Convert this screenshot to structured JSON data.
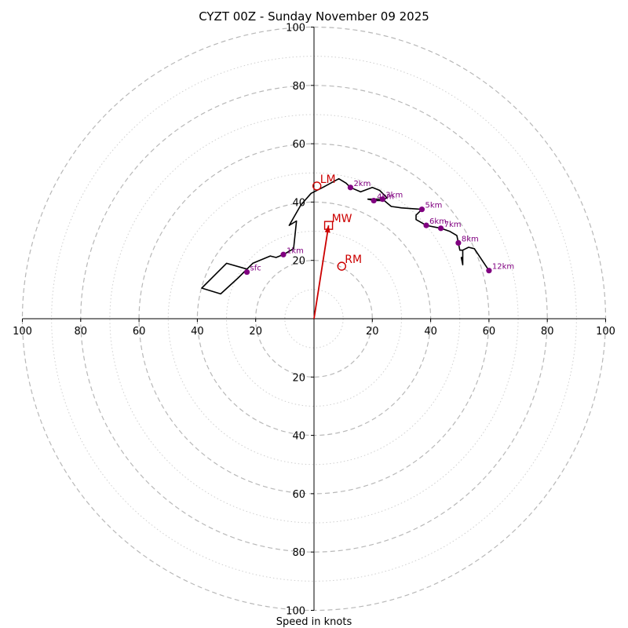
{
  "chart_data": {
    "type": "hodograph",
    "title": "CYZT 00Z - Sunday November 09 2025",
    "xlabel": "Speed in knots",
    "units": "knots",
    "xlim": [
      -100,
      100
    ],
    "ylim": [
      -100,
      100
    ],
    "rings_major": [
      20,
      40,
      60,
      80,
      100
    ],
    "rings_minor": [
      10,
      30,
      50,
      70,
      90
    ],
    "x_ticks": [
      {
        "value": -100,
        "label": "100"
      },
      {
        "value": -80,
        "label": "80"
      },
      {
        "value": -60,
        "label": "60"
      },
      {
        "value": -40,
        "label": "40"
      },
      {
        "value": -20,
        "label": "20"
      },
      {
        "value": 20,
        "label": "20"
      },
      {
        "value": 40,
        "label": "40"
      },
      {
        "value": 60,
        "label": "60"
      },
      {
        "value": 80,
        "label": "80"
      },
      {
        "value": 100,
        "label": "100"
      }
    ],
    "y_ticks": [
      {
        "value": 100,
        "label": "100"
      },
      {
        "value": 80,
        "label": "80"
      },
      {
        "value": 60,
        "label": "60"
      },
      {
        "value": 40,
        "label": "40"
      },
      {
        "value": 20,
        "label": "20"
      },
      {
        "value": -20,
        "label": "20"
      },
      {
        "value": -40,
        "label": "40"
      },
      {
        "value": -60,
        "label": "60"
      },
      {
        "value": -80,
        "label": "80"
      },
      {
        "value": -100,
        "label": "100"
      }
    ],
    "line_color": "#000000",
    "marker_color": "#800080",
    "motion_color": "#cc0000",
    "hodograph": [
      {
        "u": -23,
        "v": 16
      },
      {
        "u": -23,
        "v": 17
      },
      {
        "u": -30,
        "v": 19
      },
      {
        "u": -34,
        "v": 15
      },
      {
        "u": -38.5,
        "v": 10.5
      },
      {
        "u": -32,
        "v": 8.5
      },
      {
        "u": -26,
        "v": 14
      },
      {
        "u": -21,
        "v": 19
      },
      {
        "u": -15,
        "v": 21.5
      },
      {
        "u": -13,
        "v": 21
      },
      {
        "u": -10.5,
        "v": 22
      },
      {
        "u": -7,
        "v": 24
      },
      {
        "u": -6,
        "v": 33.5
      },
      {
        "u": -8.5,
        "v": 32
      },
      {
        "u": -4.5,
        "v": 39
      },
      {
        "u": -1,
        "v": 43
      },
      {
        "u": 3,
        "v": 45
      },
      {
        "u": 8.5,
        "v": 48
      },
      {
        "u": 11,
        "v": 46.5
      },
      {
        "u": 12.5,
        "v": 45
      },
      {
        "u": 16,
        "v": 43.5
      },
      {
        "u": 20,
        "v": 45
      },
      {
        "u": 22.5,
        "v": 44
      },
      {
        "u": 25,
        "v": 41.5
      },
      {
        "u": 23.5,
        "v": 40.5
      },
      {
        "u": 20.5,
        "v": 40.5
      },
      {
        "u": 18.5,
        "v": 41
      },
      {
        "u": 23.5,
        "v": 41
      },
      {
        "u": 26.5,
        "v": 38.5
      },
      {
        "u": 30,
        "v": 38
      },
      {
        "u": 37,
        "v": 37.5
      },
      {
        "u": 35,
        "v": 35.5
      },
      {
        "u": 35,
        "v": 34
      },
      {
        "u": 38.5,
        "v": 32
      },
      {
        "u": 43.5,
        "v": 31
      },
      {
        "u": 46.5,
        "v": 30
      },
      {
        "u": 49,
        "v": 28.5
      },
      {
        "u": 49.5,
        "v": 26
      },
      {
        "u": 50,
        "v": 23.5
      },
      {
        "u": 51,
        "v": 23.5
      },
      {
        "u": 51,
        "v": 21
      },
      {
        "u": 50.5,
        "v": 21
      },
      {
        "u": 51,
        "v": 18.5
      },
      {
        "u": 51,
        "v": 23.5
      },
      {
        "u": 53,
        "v": 24.5
      },
      {
        "u": 55,
        "v": 24
      },
      {
        "u": 60,
        "v": 16.5
      }
    ],
    "height_markers": [
      {
        "label": "sfc",
        "u": -23,
        "v": 16
      },
      {
        "label": "1km",
        "u": -10.5,
        "v": 22
      },
      {
        "label": "2km",
        "u": 12.5,
        "v": 45
      },
      {
        "label": "3km",
        "u": 23.5,
        "v": 41
      },
      {
        "label": "4km",
        "u": 20.5,
        "v": 40.5
      },
      {
        "label": "5km",
        "u": 37,
        "v": 37.5
      },
      {
        "label": "6km",
        "u": 38.5,
        "v": 32
      },
      {
        "label": "7km",
        "u": 43.5,
        "v": 31
      },
      {
        "label": "8km",
        "u": 49.5,
        "v": 26
      },
      {
        "label": "12km",
        "u": 60,
        "v": 16.5
      }
    ],
    "storm_motions": [
      {
        "label": "LM",
        "u": 1,
        "v": 45.5,
        "marker": "circle"
      },
      {
        "label": "MW",
        "u": 5,
        "v": 32,
        "marker": "square"
      },
      {
        "label": "RM",
        "u": 9.5,
        "v": 18,
        "marker": "circle"
      }
    ],
    "arrow": {
      "from_u": 0,
      "from_v": 0,
      "to_u": 5,
      "to_v": 32
    }
  }
}
